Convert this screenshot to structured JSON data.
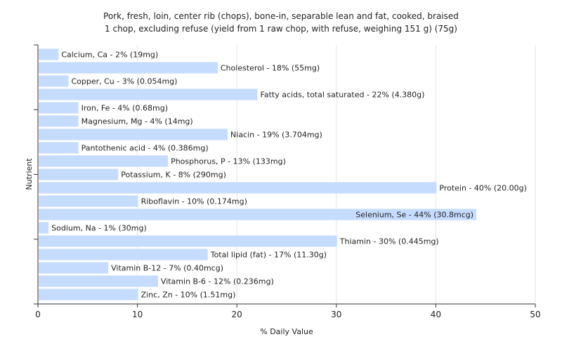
{
  "chart_data": {
    "type": "bar",
    "orientation": "horizontal",
    "title": [
      "Pork, fresh, loin, center rib (chops), bone-in, separable lean and fat, cooked, braised",
      "1 chop, excluding refuse (yield from 1 raw chop, with refuse, weighing 151 g) (75g)"
    ],
    "xlabel": "% Daily Value",
    "ylabel": "Nutrient",
    "xlim": [
      0,
      50
    ],
    "xticks": [
      "0",
      "10",
      "20",
      "30",
      "40",
      "50"
    ],
    "grid": true,
    "bar_color": "#c6dcff",
    "series": [
      {
        "values": [
          2,
          18,
          3,
          22,
          4,
          4,
          19,
          4,
          13,
          8,
          40,
          10,
          44,
          1,
          30,
          17,
          7,
          12,
          10
        ],
        "labels": [
          "Calcium, Ca - 2% (19mg)",
          "Cholesterol - 18% (55mg)",
          "Copper, Cu - 3% (0.054mg)",
          "Fatty acids, total saturated - 22% (4.380g)",
          "Iron, Fe - 4% (0.68mg)",
          "Magnesium, Mg - 4% (14mg)",
          "Niacin - 19% (3.704mg)",
          "Pantothenic acid - 4% (0.386mg)",
          "Phosphorus, P - 13% (133mg)",
          "Potassium, K - 8% (290mg)",
          "Protein - 40% (20.00g)",
          "Riboflavin - 10% (0.174mg)",
          "Selenium, Se - 44% (30.8mcg)",
          "Sodium, Na - 1% (30mg)",
          "Thiamin - 30% (0.445mg)",
          "Total lipid (fat) - 17% (11.30g)",
          "Vitamin B-12 - 7% (0.40mcg)",
          "Vitamin B-6 - 12% (0.236mg)",
          "Zinc, Zn - 10% (1.51mg)"
        ]
      }
    ]
  }
}
